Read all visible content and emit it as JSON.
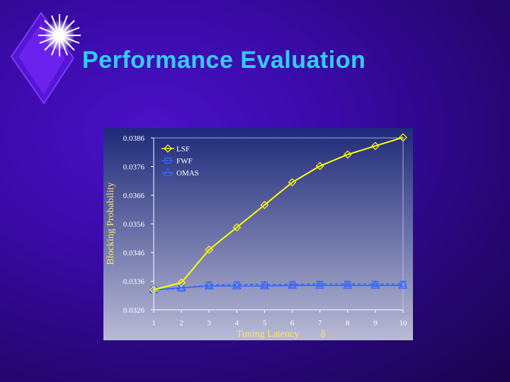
{
  "slide": {
    "title": "Performance Evaluation"
  },
  "chart_data": {
    "type": "line",
    "title": "",
    "xlabel": "Tuning Latency",
    "xlabel_symbol": "δ",
    "ylabel": "Blocking Probability",
    "x": [
      1,
      2,
      3,
      4,
      5,
      6,
      7,
      8,
      9,
      10
    ],
    "ylim": [
      0.0326,
      0.0386
    ],
    "yticks": [
      "0.0326",
      "0.0336",
      "0.0346",
      "0.0356",
      "0.0366",
      "0.0376",
      "0.0386"
    ],
    "xticks": [
      "1",
      "2",
      "3",
      "4",
      "5",
      "6",
      "7",
      "8",
      "9",
      "10"
    ],
    "grid": false,
    "legend_position": "top-left",
    "series": [
      {
        "name": "LSF",
        "color": "#ffff00",
        "marker": "diamond",
        "values": [
          0.0333,
          0.03355,
          0.0347,
          0.03548,
          0.03626,
          0.03705,
          0.03762,
          0.03802,
          0.03832,
          0.03862
        ]
      },
      {
        "name": "FWF",
        "color": "#3366ff",
        "marker": "square",
        "values": [
          0.0333,
          0.03335,
          0.03347,
          0.03348,
          0.03348,
          0.03349,
          0.0335,
          0.0335,
          0.0335,
          0.0335
        ]
      },
      {
        "name": "OMAS",
        "color": "#3366ff",
        "marker": "triangle",
        "values": [
          0.0333,
          0.03337,
          0.03343,
          0.03343,
          0.03343,
          0.03345,
          0.03345,
          0.03345,
          0.03345,
          0.03345
        ]
      }
    ]
  }
}
